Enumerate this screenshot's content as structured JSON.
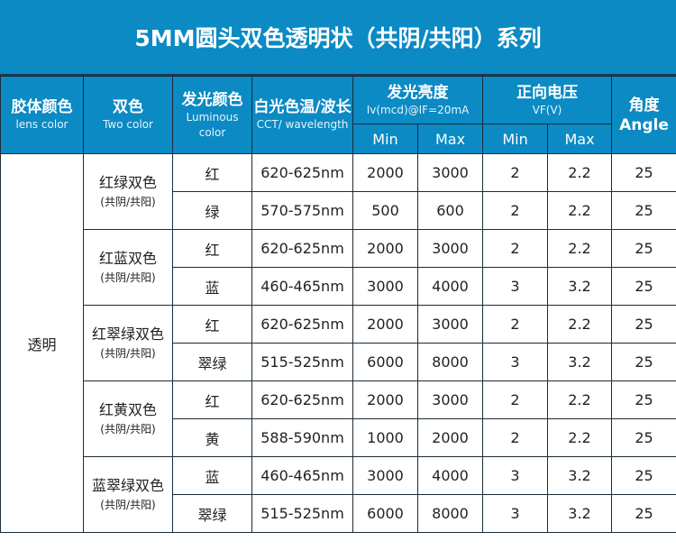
{
  "title": "5MM圆头双色透明状（共阴/共阳）系列",
  "header": {
    "lens": {
      "cn": "胶体颜色",
      "en": "lens color"
    },
    "two": {
      "cn": "双色",
      "en": "Two color"
    },
    "lum": {
      "cn": "发光颜色",
      "en": "Luminous color"
    },
    "cct": {
      "cn": "白光色温/波长",
      "en": "CCT/ wavelength"
    },
    "iv": {
      "cn": "发光亮度",
      "en": "Iv(mcd)@IF=20mA"
    },
    "vf": {
      "cn": "正向电压",
      "en": "VF(V)"
    },
    "angle": {
      "cn": "角度",
      "en": "Angle"
    },
    "min": "Min",
    "max": "Max"
  },
  "lens_value": "透明",
  "groups": [
    {
      "name": "红绿双色",
      "note": "(共阴/共阳)",
      "rows": [
        {
          "color": "红",
          "wl": "620-625nm",
          "iv_min": "2000",
          "iv_max": "3000",
          "vf_min": "2",
          "vf_max": "2.2",
          "angle": "25"
        },
        {
          "color": "绿",
          "wl": "570-575nm",
          "iv_min": "500",
          "iv_max": "600",
          "vf_min": "2",
          "vf_max": "2.2",
          "angle": "25"
        }
      ]
    },
    {
      "name": "红蓝双色",
      "note": "(共阴/共阳)",
      "rows": [
        {
          "color": "红",
          "wl": "620-625nm",
          "iv_min": "2000",
          "iv_max": "3000",
          "vf_min": "2",
          "vf_max": "2.2",
          "angle": "25"
        },
        {
          "color": "蓝",
          "wl": "460-465nm",
          "iv_min": "3000",
          "iv_max": "4000",
          "vf_min": "3",
          "vf_max": "3.2",
          "angle": "25"
        }
      ]
    },
    {
      "name": "红翠绿双色",
      "note": "(共阴/共阳)",
      "rows": [
        {
          "color": "红",
          "wl": "620-625nm",
          "iv_min": "2000",
          "iv_max": "3000",
          "vf_min": "2",
          "vf_max": "2.2",
          "angle": "25"
        },
        {
          "color": "翠绿",
          "wl": "515-525nm",
          "iv_min": "6000",
          "iv_max": "8000",
          "vf_min": "3",
          "vf_max": "3.2",
          "angle": "25"
        }
      ]
    },
    {
      "name": "红黄双色",
      "note": "(共阴/共阳)",
      "rows": [
        {
          "color": "红",
          "wl": "620-625nm",
          "iv_min": "2000",
          "iv_max": "3000",
          "vf_min": "2",
          "vf_max": "2.2",
          "angle": "25"
        },
        {
          "color": "黄",
          "wl": "588-590nm",
          "iv_min": "1000",
          "iv_max": "2000",
          "vf_min": "2",
          "vf_max": "2.2",
          "angle": "25"
        }
      ]
    },
    {
      "name": "蓝翠绿双色",
      "note": "(共阴/共阳)",
      "rows": [
        {
          "color": "蓝",
          "wl": "460-465nm",
          "iv_min": "3000",
          "iv_max": "4000",
          "vf_min": "3",
          "vf_max": "3.2",
          "angle": "25"
        },
        {
          "color": "翠绿",
          "wl": "515-525nm",
          "iv_min": "6000",
          "iv_max": "8000",
          "vf_min": "3",
          "vf_max": "3.2",
          "angle": "25"
        }
      ]
    }
  ]
}
